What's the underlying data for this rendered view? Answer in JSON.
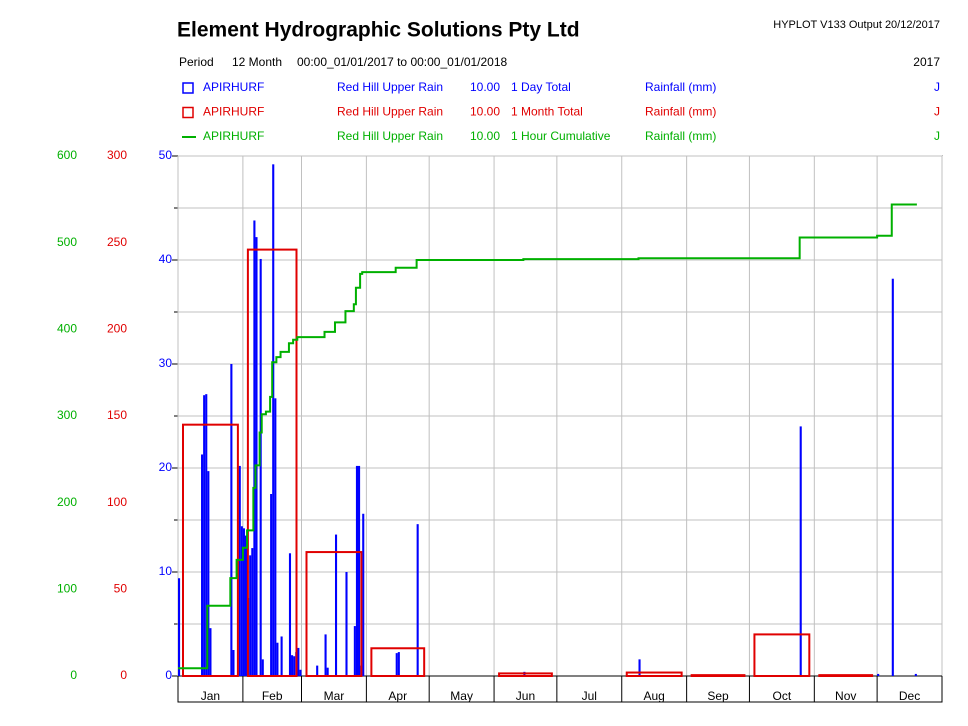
{
  "header": {
    "title": "Element Hydrographic Solutions Pty Ltd",
    "version": "HYPLOT V133  Output 20/12/2017",
    "period_label": "Period",
    "period_length": "12 Month",
    "period_range": "00:00_01/01/2017 to 00:00_01/01/2018",
    "year": "2017"
  },
  "chart_data": {
    "type": "combo",
    "categories": [
      "Jan",
      "Feb",
      "Mar",
      "Apr",
      "May",
      "Jun",
      "Jul",
      "Aug",
      "Sep",
      "Oct",
      "Nov",
      "Dec"
    ],
    "xlim": [
      0,
      365
    ],
    "xticks": [
      0,
      31,
      59,
      90,
      120,
      151,
      181,
      212,
      243,
      273,
      304,
      334,
      365
    ],
    "ylim": [
      0,
      50
    ],
    "yticks": [
      0,
      10,
      20,
      30,
      40,
      50
    ],
    "minor_yticks": [
      5,
      15,
      25,
      35,
      45
    ],
    "y2lim": [
      0,
      300
    ],
    "y2ticks": [
      0,
      50,
      100,
      150,
      200,
      250,
      300
    ],
    "y3lim": [
      0,
      600
    ],
    "y3ticks": [
      0,
      100,
      200,
      300,
      400,
      500,
      600
    ],
    "grid": true,
    "series": [
      {
        "type": "bar",
        "axis": "y",
        "color": "#0000ff",
        "name": "APIRHURF",
        "site": "Red Hill Upper Rain",
        "code": "10.00",
        "description": "1 Day Total",
        "units": "Rainfall (mm)",
        "flag": "J",
        "x": [
          0,
          11,
          12,
          13,
          14,
          15,
          25,
          26,
          29,
          30,
          31,
          32,
          33,
          34,
          35,
          36,
          37,
          39,
          40,
          44,
          45,
          46,
          47,
          49,
          53,
          54,
          55,
          56,
          57,
          58,
          66,
          70,
          71,
          75,
          80,
          84,
          85,
          86,
          87,
          88,
          104,
          105,
          114,
          165,
          220,
          297,
          334,
          341,
          352
        ],
        "values": [
          9.4,
          21.3,
          27,
          27.1,
          19.7,
          4.6,
          30,
          2.5,
          20.2,
          14.4,
          14.2,
          13.5,
          7.5,
          11.6,
          12.3,
          43.8,
          42.2,
          40.1,
          1.6,
          17.5,
          49.2,
          26.7,
          3.2,
          3.8,
          11.8,
          2,
          1.9,
          2.3,
          2.7,
          0.6,
          1,
          4,
          0.8,
          13.6,
          10,
          4.8,
          20.2,
          20.2,
          1,
          15.6,
          2.2,
          2.3,
          14.6,
          0.4,
          1.6,
          24,
          0.2,
          38.2,
          0.2
        ]
      },
      {
        "type": "step_bar",
        "axis": "y2",
        "color": "#e00000",
        "name": "APIRHURF",
        "site": "Red Hill Upper Rain",
        "code": "10.00",
        "description": "1 Month Total",
        "units": "Rainfall (mm)",
        "flag": "J",
        "x": [
          0,
          31,
          59,
          90,
          120,
          151,
          181,
          212,
          243,
          273,
          304,
          334
        ],
        "values": [
          145,
          246,
          71.5,
          16,
          0,
          1.5,
          0,
          2,
          0.5,
          24,
          0.5,
          0
        ]
      },
      {
        "type": "step_line",
        "axis": "y3",
        "color": "#00b000",
        "name": "APIRHURF",
        "site": "Red Hill Upper Rain",
        "code": "10.00",
        "description": "1 Hour Cumulative",
        "units": "Rainfall (mm)",
        "flag": "J",
        "x": [
          0,
          14,
          25,
          28,
          31,
          33,
          36,
          37,
          39,
          40,
          42,
          44,
          45,
          47,
          49,
          53,
          55,
          57,
          70,
          75,
          80,
          84,
          85,
          87,
          88,
          104,
          114,
          165,
          220,
          297,
          334,
          341,
          353
        ],
        "values": [
          9,
          81,
          113,
          134,
          148,
          168,
          217,
          243,
          281,
          302,
          305,
          322,
          362,
          368,
          374,
          384,
          388,
          391,
          397,
          408,
          421,
          429,
          448,
          464,
          466,
          471,
          480,
          481,
          482,
          506,
          508,
          544,
          544
        ]
      }
    ]
  }
}
